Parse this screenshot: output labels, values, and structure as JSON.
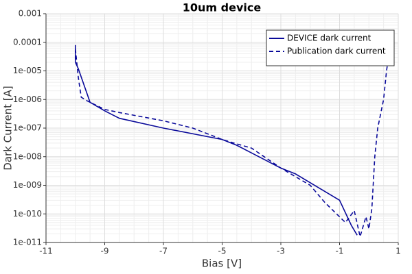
{
  "chart_data": {
    "type": "line",
    "title": "10um device",
    "x_label": "Bias [V]",
    "y_label": "Dark Current [A]",
    "log_y": true,
    "grid": true,
    "legend_position": "upper-right",
    "xlim": [
      -11,
      1
    ],
    "xticks": [
      -11,
      -9,
      -7,
      -5,
      -3,
      -1,
      1
    ],
    "ylim": [
      1e-11,
      0.001
    ],
    "yticks": [
      {
        "value": 1e-11,
        "label": "1e-011"
      },
      {
        "value": 1e-10,
        "label": "1e-010"
      },
      {
        "value": 1e-09,
        "label": "1e-009"
      },
      {
        "value": 1e-08,
        "label": "1e-008"
      },
      {
        "value": 1e-07,
        "label": "1e-007"
      },
      {
        "value": 1e-06,
        "label": "1e-006"
      },
      {
        "value": 1e-05,
        "label": "1e-005"
      },
      0.0001,
      0.001
    ],
    "series": [
      {
        "name": "DEVICE dark current",
        "color": "#0a0a9a",
        "dashed": false,
        "x": [
          -10,
          -10,
          -9.9,
          -9.5,
          -9,
          -8.5,
          -7,
          -5,
          -4.5,
          -3,
          -2.5,
          -1,
          -0.6,
          -0.4
        ],
        "values": [
          8e-05,
          2e-05,
          1.2e-05,
          8e-07,
          4e-07,
          2.2e-07,
          1e-07,
          4e-08,
          2.5e-08,
          4e-09,
          2.5e-09,
          3e-10,
          4e-11,
          1.8e-11
        ]
      },
      {
        "name": "Publication dark current",
        "color": "#0a0a9a",
        "dashed": true,
        "x": [
          -10,
          -9.9,
          -9.8,
          -9.6,
          -9,
          -8.5,
          -7,
          -6,
          -5,
          -4.5,
          -4,
          -3,
          -2,
          -1.5,
          -0.8,
          -0.5,
          -0.3,
          -0.1,
          0,
          0.1,
          0.2,
          0.3,
          0.5,
          0.6,
          0.7
        ],
        "values": [
          6e-05,
          6e-06,
          1.2e-06,
          9e-07,
          4.5e-07,
          3.5e-07,
          1.8e-07,
          1e-07,
          4e-08,
          2.8e-08,
          2e-08,
          4e-09,
          1e-09,
          2.5e-10,
          5e-11,
          1.3e-10,
          1.6e-11,
          8e-11,
          3e-11,
          1.5e-10,
          1e-08,
          1e-07,
          1e-06,
          1e-05,
          5e-05
        ]
      }
    ]
  }
}
